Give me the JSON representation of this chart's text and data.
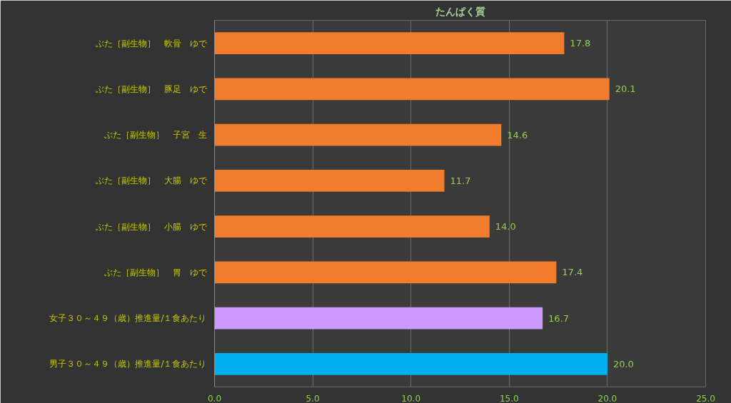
{
  "chart_data": {
    "type": "bar",
    "orientation": "horizontal",
    "title": "たんぱく質",
    "categories": [
      "ぶた［副生物］　軟骨　ゆで",
      "ぶた［副生物］　豚足　ゆで",
      "ぶた［副生物］　子宮　生",
      "ぶた［副生物］　大腸　ゆで",
      "ぶた［副生物］　小腸　ゆで",
      "ぶた［副生物］　胃　ゆで",
      "女子３０～４９（歳）推進量/１食あたり",
      "男子３０～４９（歳）推進量/１食あたり"
    ],
    "values": [
      17.8,
      20.1,
      14.6,
      11.7,
      14.0,
      17.4,
      16.7,
      20.0
    ],
    "colors": [
      "#f07c2c",
      "#f07c2c",
      "#f07c2c",
      "#f07c2c",
      "#f07c2c",
      "#f07c2c",
      "#cc99ff",
      "#00b0f0"
    ],
    "value_labels": [
      "17.8",
      "20.1",
      "14.6",
      "11.7",
      "14.0",
      "17.4",
      "16.7",
      "20.0"
    ],
    "xlim": [
      0,
      25
    ],
    "xticks": [
      {
        "value": 0,
        "label": "0.0"
      },
      {
        "value": 5,
        "label": "5.0"
      },
      {
        "value": 10,
        "label": "10.0"
      },
      {
        "value": 15,
        "label": "15.0"
      },
      {
        "value": 20,
        "label": "20.0"
      },
      {
        "value": 25,
        "label": "25.0"
      }
    ],
    "grid": "x"
  }
}
